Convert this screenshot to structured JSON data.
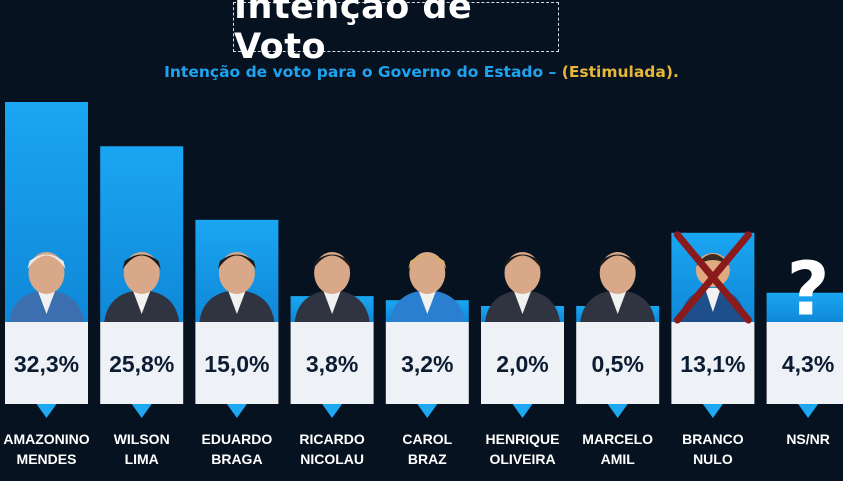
{
  "header": {
    "title": "Intenção de Voto",
    "subtitle_main": "Intenção de voto para o Governo do Estado – ",
    "subtitle_open": "(",
    "subtitle_highlight": "Estimulada",
    "subtitle_close": ").",
    "accent_color": "#1fa3f0",
    "highlight_color": "#e5b83a"
  },
  "chart_data": {
    "type": "bar",
    "categories": [
      [
        "AMAZONINO",
        "MENDES"
      ],
      [
        "WILSON",
        "LIMA"
      ],
      [
        "EDUARDO",
        "BRAGA"
      ],
      [
        "RICARDO",
        "NICOLAU"
      ],
      [
        "CAROL",
        "BRAZ"
      ],
      [
        "HENRIQUE",
        "OLIVEIRA"
      ],
      [
        "MARCELO",
        "AMIL"
      ],
      [
        "BRANCO",
        "NULO"
      ],
      [
        "NS/NR"
      ]
    ],
    "values": [
      32.3,
      25.8,
      15.0,
      3.8,
      3.2,
      2.0,
      0.5,
      13.1,
      4.3
    ],
    "value_labels": [
      "32,3%",
      "25,8%",
      "15,0%",
      "3,8%",
      "3,2%",
      "2,0%",
      "0,5%",
      "13,1%",
      "4,3%"
    ],
    "colors": {
      "bar_top": "#1aa0ee",
      "bar_bottom": "#0f86d6",
      "card": "#eef1f5",
      "pointer": "#1fa8f2"
    },
    "grid": false,
    "legend": "none"
  }
}
